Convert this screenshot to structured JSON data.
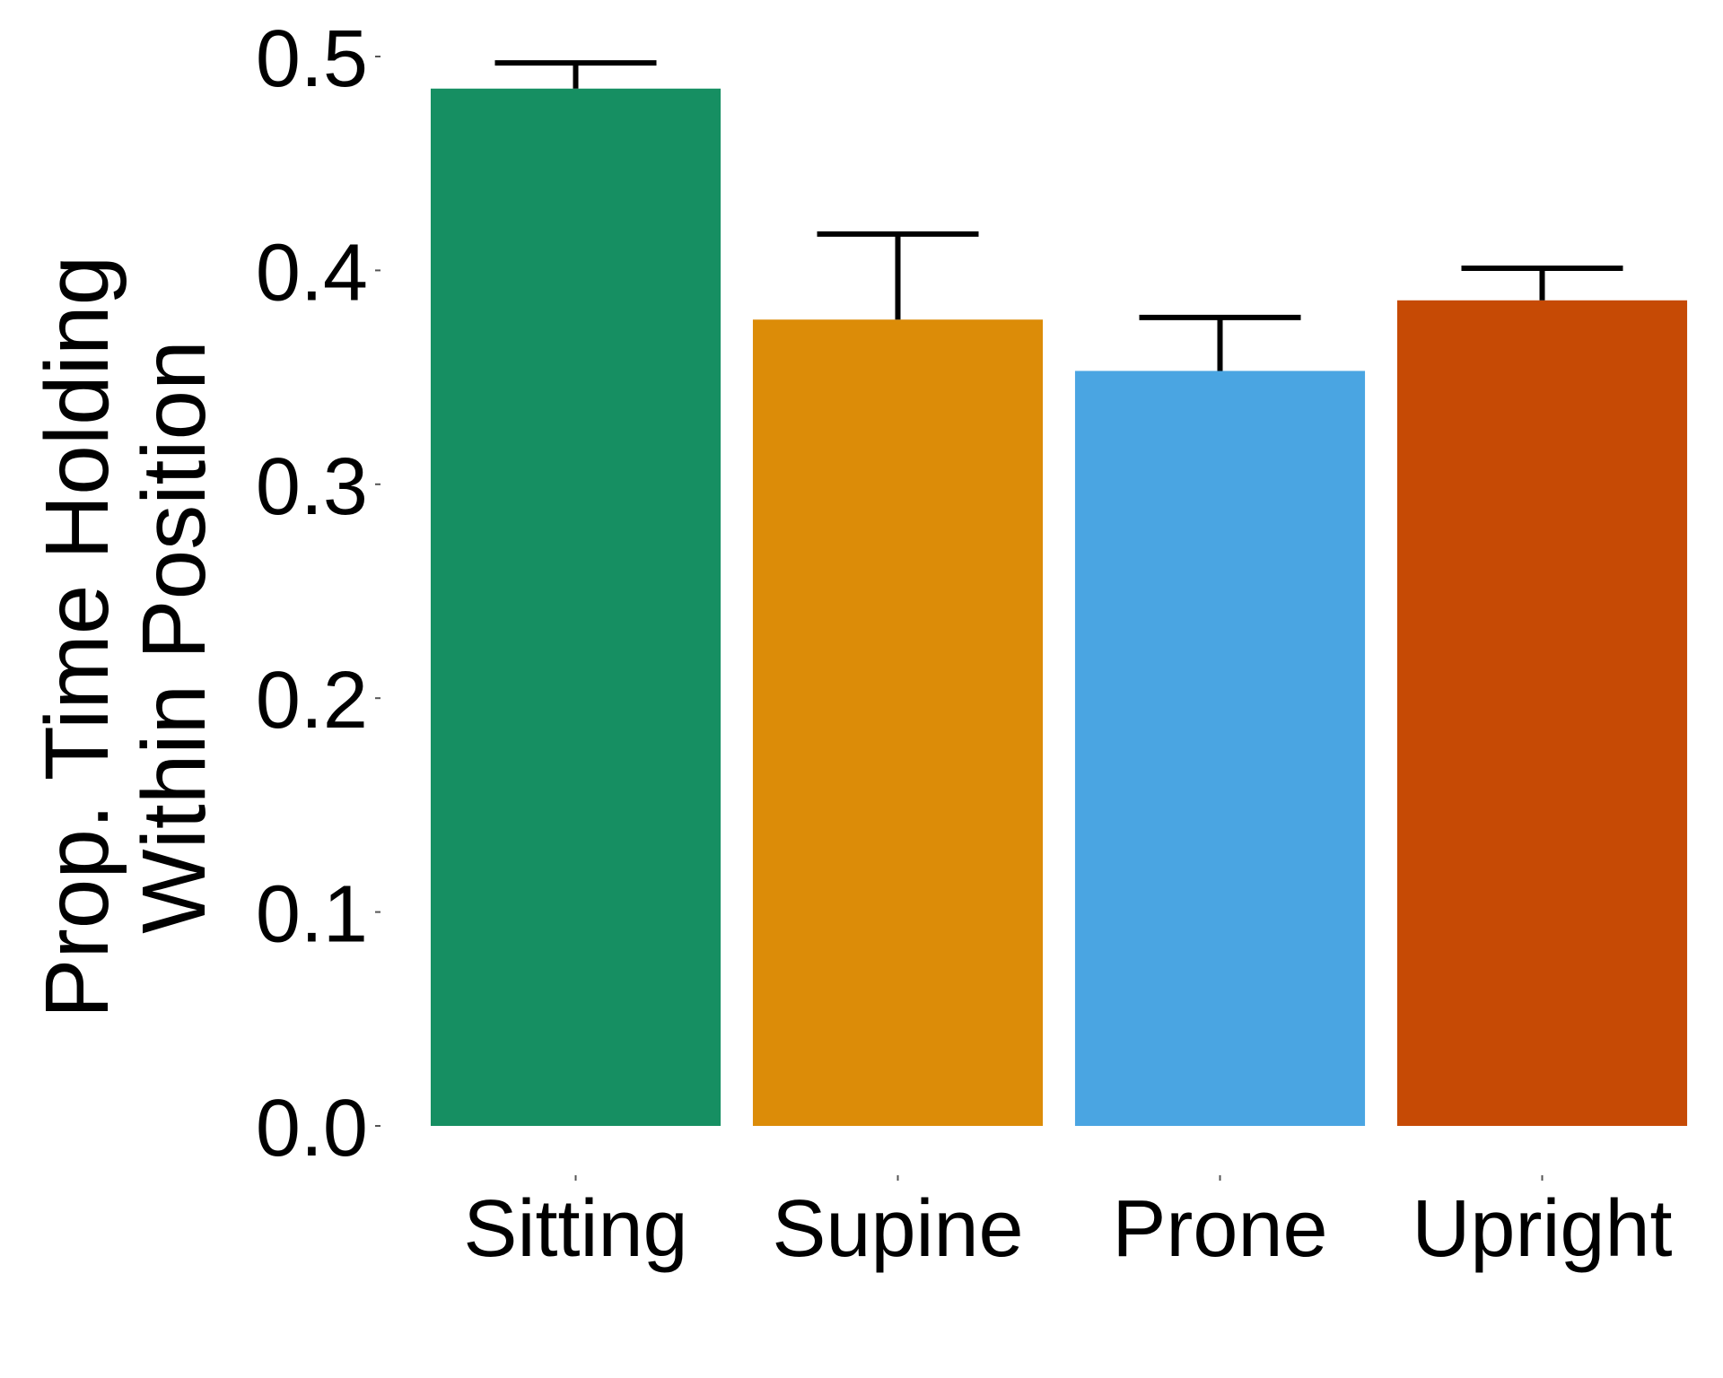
{
  "chart_data": {
    "type": "bar",
    "title": "",
    "xlabel": "",
    "ylabel_lines": [
      "Prop. Time Holding",
      "Within Position"
    ],
    "categories": [
      "Sitting",
      "Supine",
      "Prone",
      "Upright"
    ],
    "values": [
      0.485,
      0.377,
      0.353,
      0.386
    ],
    "error_upper": [
      0.497,
      0.417,
      0.378,
      0.401
    ],
    "colors": [
      "#168f62",
      "#dc8c08",
      "#4aa5e2",
      "#c64a05"
    ],
    "ylim": [
      0,
      0.5
    ],
    "yticks": [
      "0.0",
      "0.1",
      "0.2",
      "0.3",
      "0.4",
      "0.5"
    ],
    "grid": false,
    "legend": "none"
  }
}
